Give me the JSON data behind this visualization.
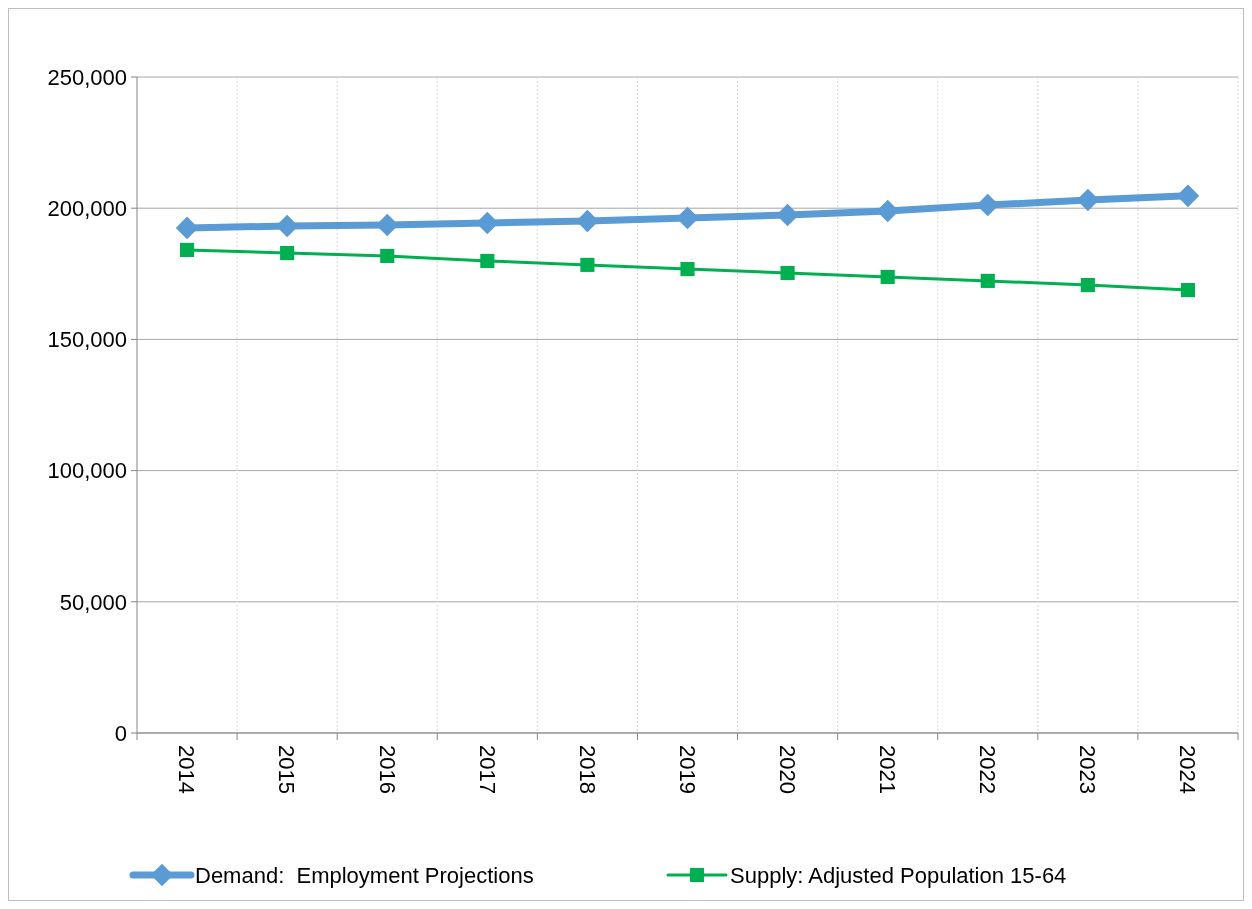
{
  "chart_data": {
    "type": "line",
    "categories": [
      "2014",
      "2015",
      "2016",
      "2017",
      "2018",
      "2019",
      "2020",
      "2021",
      "2022",
      "2023",
      "2024"
    ],
    "series": [
      {
        "name": "Demand:  Employment Projections",
        "color": "#5b9bd5",
        "marker": "diamond",
        "values": [
          192500,
          193200,
          193600,
          194400,
          195100,
          196300,
          197400,
          198900,
          201200,
          203100,
          204700
        ]
      },
      {
        "name": "Supply: Adjusted Population 15-64",
        "color": "#00b050",
        "marker": "square",
        "values": [
          184100,
          182900,
          181800,
          179900,
          178400,
          176800,
          175300,
          173800,
          172300,
          170700,
          168800
        ]
      }
    ],
    "ylim": [
      0,
      250000
    ],
    "yticks": [
      {
        "value": 0,
        "label": "0"
      },
      {
        "value": 50000,
        "label": "50,000"
      },
      {
        "value": 100000,
        "label": "100,000"
      },
      {
        "value": 150000,
        "label": "150,000"
      },
      {
        "value": 200000,
        "label": "200,000"
      },
      {
        "value": 250000,
        "label": "250,000"
      }
    ],
    "grid": true,
    "legend": "bottom"
  }
}
